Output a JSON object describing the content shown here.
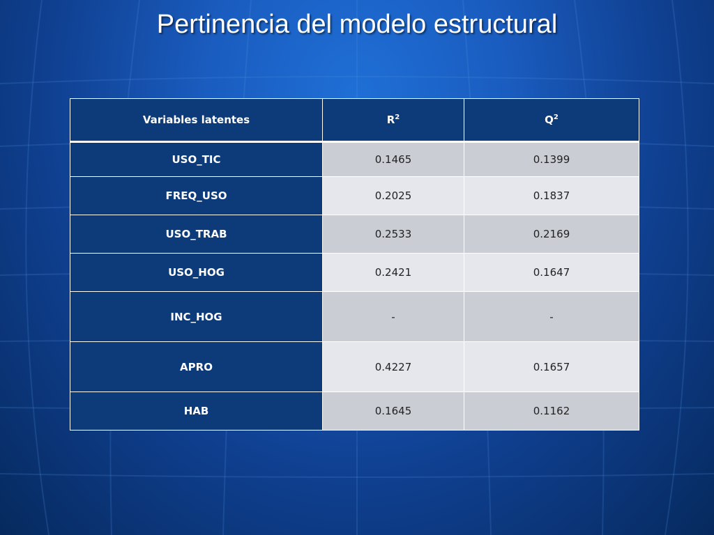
{
  "slide": {
    "title": "Pertinencia del modelo estructural"
  },
  "table": {
    "headers": {
      "col1": "Variables latentes",
      "col2_base": "R",
      "col2_sup": "2",
      "col3_base": "Q",
      "col3_sup": "2"
    },
    "rows": [
      {
        "variable": "USO_TIC",
        "r2": "0.1465",
        "q2": "0.1399"
      },
      {
        "variable": "FREQ_USO",
        "r2": "0.2025",
        "q2": "0.1837"
      },
      {
        "variable": "USO_TRAB",
        "r2": "0.2533",
        "q2": "0.2169"
      },
      {
        "variable": "USO_HOG",
        "r2": "0.2421",
        "q2": "0.1647"
      },
      {
        "variable": "INC_HOG",
        "r2": "-",
        "q2": "-"
      },
      {
        "variable": "APRO",
        "r2": "0.4227",
        "q2": "0.1657"
      },
      {
        "variable": "HAB",
        "r2": "0.1645",
        "q2": "0.1162"
      }
    ]
  },
  "colors": {
    "header_bg": "#0d3a78",
    "row_odd_bg": "#cbcdd4",
    "row_even_bg": "#e6e7ec"
  }
}
